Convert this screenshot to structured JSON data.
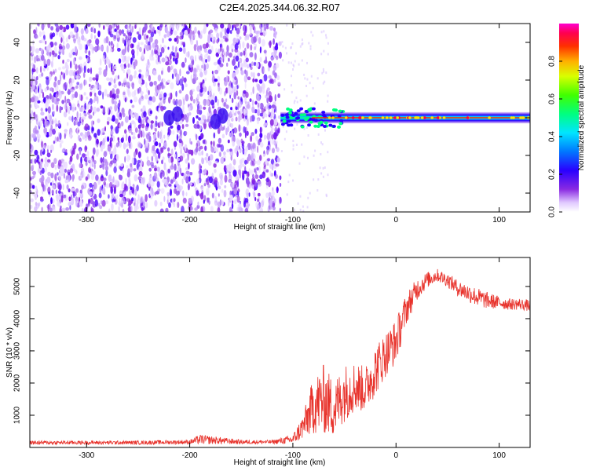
{
  "figure_title": "C2E4.2025.344.06.32.R07",
  "chart_data": [
    {
      "type": "heatmap",
      "title": "",
      "xlabel": "Height of straight line (km)",
      "ylabel": "Frequency (Hz)",
      "xlim": [
        -355,
        130
      ],
      "ylim": [
        -50,
        50
      ],
      "x_ticks": [
        -300,
        -200,
        -100,
        0,
        100
      ],
      "y_ticks": [
        -40,
        -20,
        0,
        20,
        40
      ],
      "x_tick_labels": [
        "-300",
        "-200",
        "-100",
        "0",
        "100"
      ],
      "y_tick_labels": [
        "-40",
        "-20",
        "0",
        "20",
        "40"
      ],
      "noise_region_x": [
        -355,
        -112
      ],
      "signal_band_x": [
        -112,
        130
      ],
      "signal_band_center_hz": 0,
      "signal_band_halfwidth_hz": 3,
      "colorbar": {
        "label": "Normalized spectral amplitude",
        "range": [
          0.0,
          1.0
        ],
        "ticks": [
          0.0,
          0.2,
          0.4,
          0.6,
          0.8
        ],
        "tick_labels": [
          "0.0",
          "0.2",
          "0.4",
          "0.6",
          "0.8"
        ],
        "colormap": "rainbow (white → violet → blue → cyan → green → yellow → red → magenta)"
      }
    },
    {
      "type": "line",
      "title": "",
      "xlabel": "Height of straight line (km)",
      "ylabel": "SNR (10 * v/v)",
      "xlim": [
        -355,
        130
      ],
      "ylim": [
        0,
        5900
      ],
      "x_ticks": [
        -300,
        -200,
        -100,
        0,
        100
      ],
      "y_ticks": [
        1000,
        2000,
        3000,
        4000,
        5000
      ],
      "x_tick_labels": [
        "-300",
        "-200",
        "-100",
        "0",
        "100"
      ],
      "y_tick_labels": [
        "1000",
        "2000",
        "3000",
        "4000",
        "5000"
      ],
      "series": [
        {
          "name": "SNR",
          "color": "#e8332c",
          "x": [
            -355,
            -300,
            -250,
            -200,
            -190,
            -150,
            -120,
            -100,
            -90,
            -80,
            -70,
            -60,
            -50,
            -40,
            -30,
            -20,
            -10,
            0,
            10,
            20,
            30,
            40,
            50,
            60,
            70,
            80,
            90,
            100,
            110,
            120,
            130
          ],
          "y": [
            150,
            150,
            150,
            170,
            250,
            170,
            170,
            250,
            650,
            1300,
            1500,
            1200,
            1700,
            1900,
            1800,
            2400,
            2900,
            3300,
            4300,
            4900,
            5200,
            5350,
            5200,
            4950,
            4800,
            4650,
            4550,
            4500,
            4450,
            4450,
            4400
          ],
          "noise": [
            60,
            60,
            60,
            70,
            150,
            70,
            60,
            150,
            400,
            900,
            1100,
            900,
            900,
            800,
            700,
            800,
            700,
            700,
            500,
            350,
            250,
            200,
            220,
            250,
            280,
            300,
            250,
            200,
            180,
            180,
            180
          ]
        }
      ]
    }
  ]
}
